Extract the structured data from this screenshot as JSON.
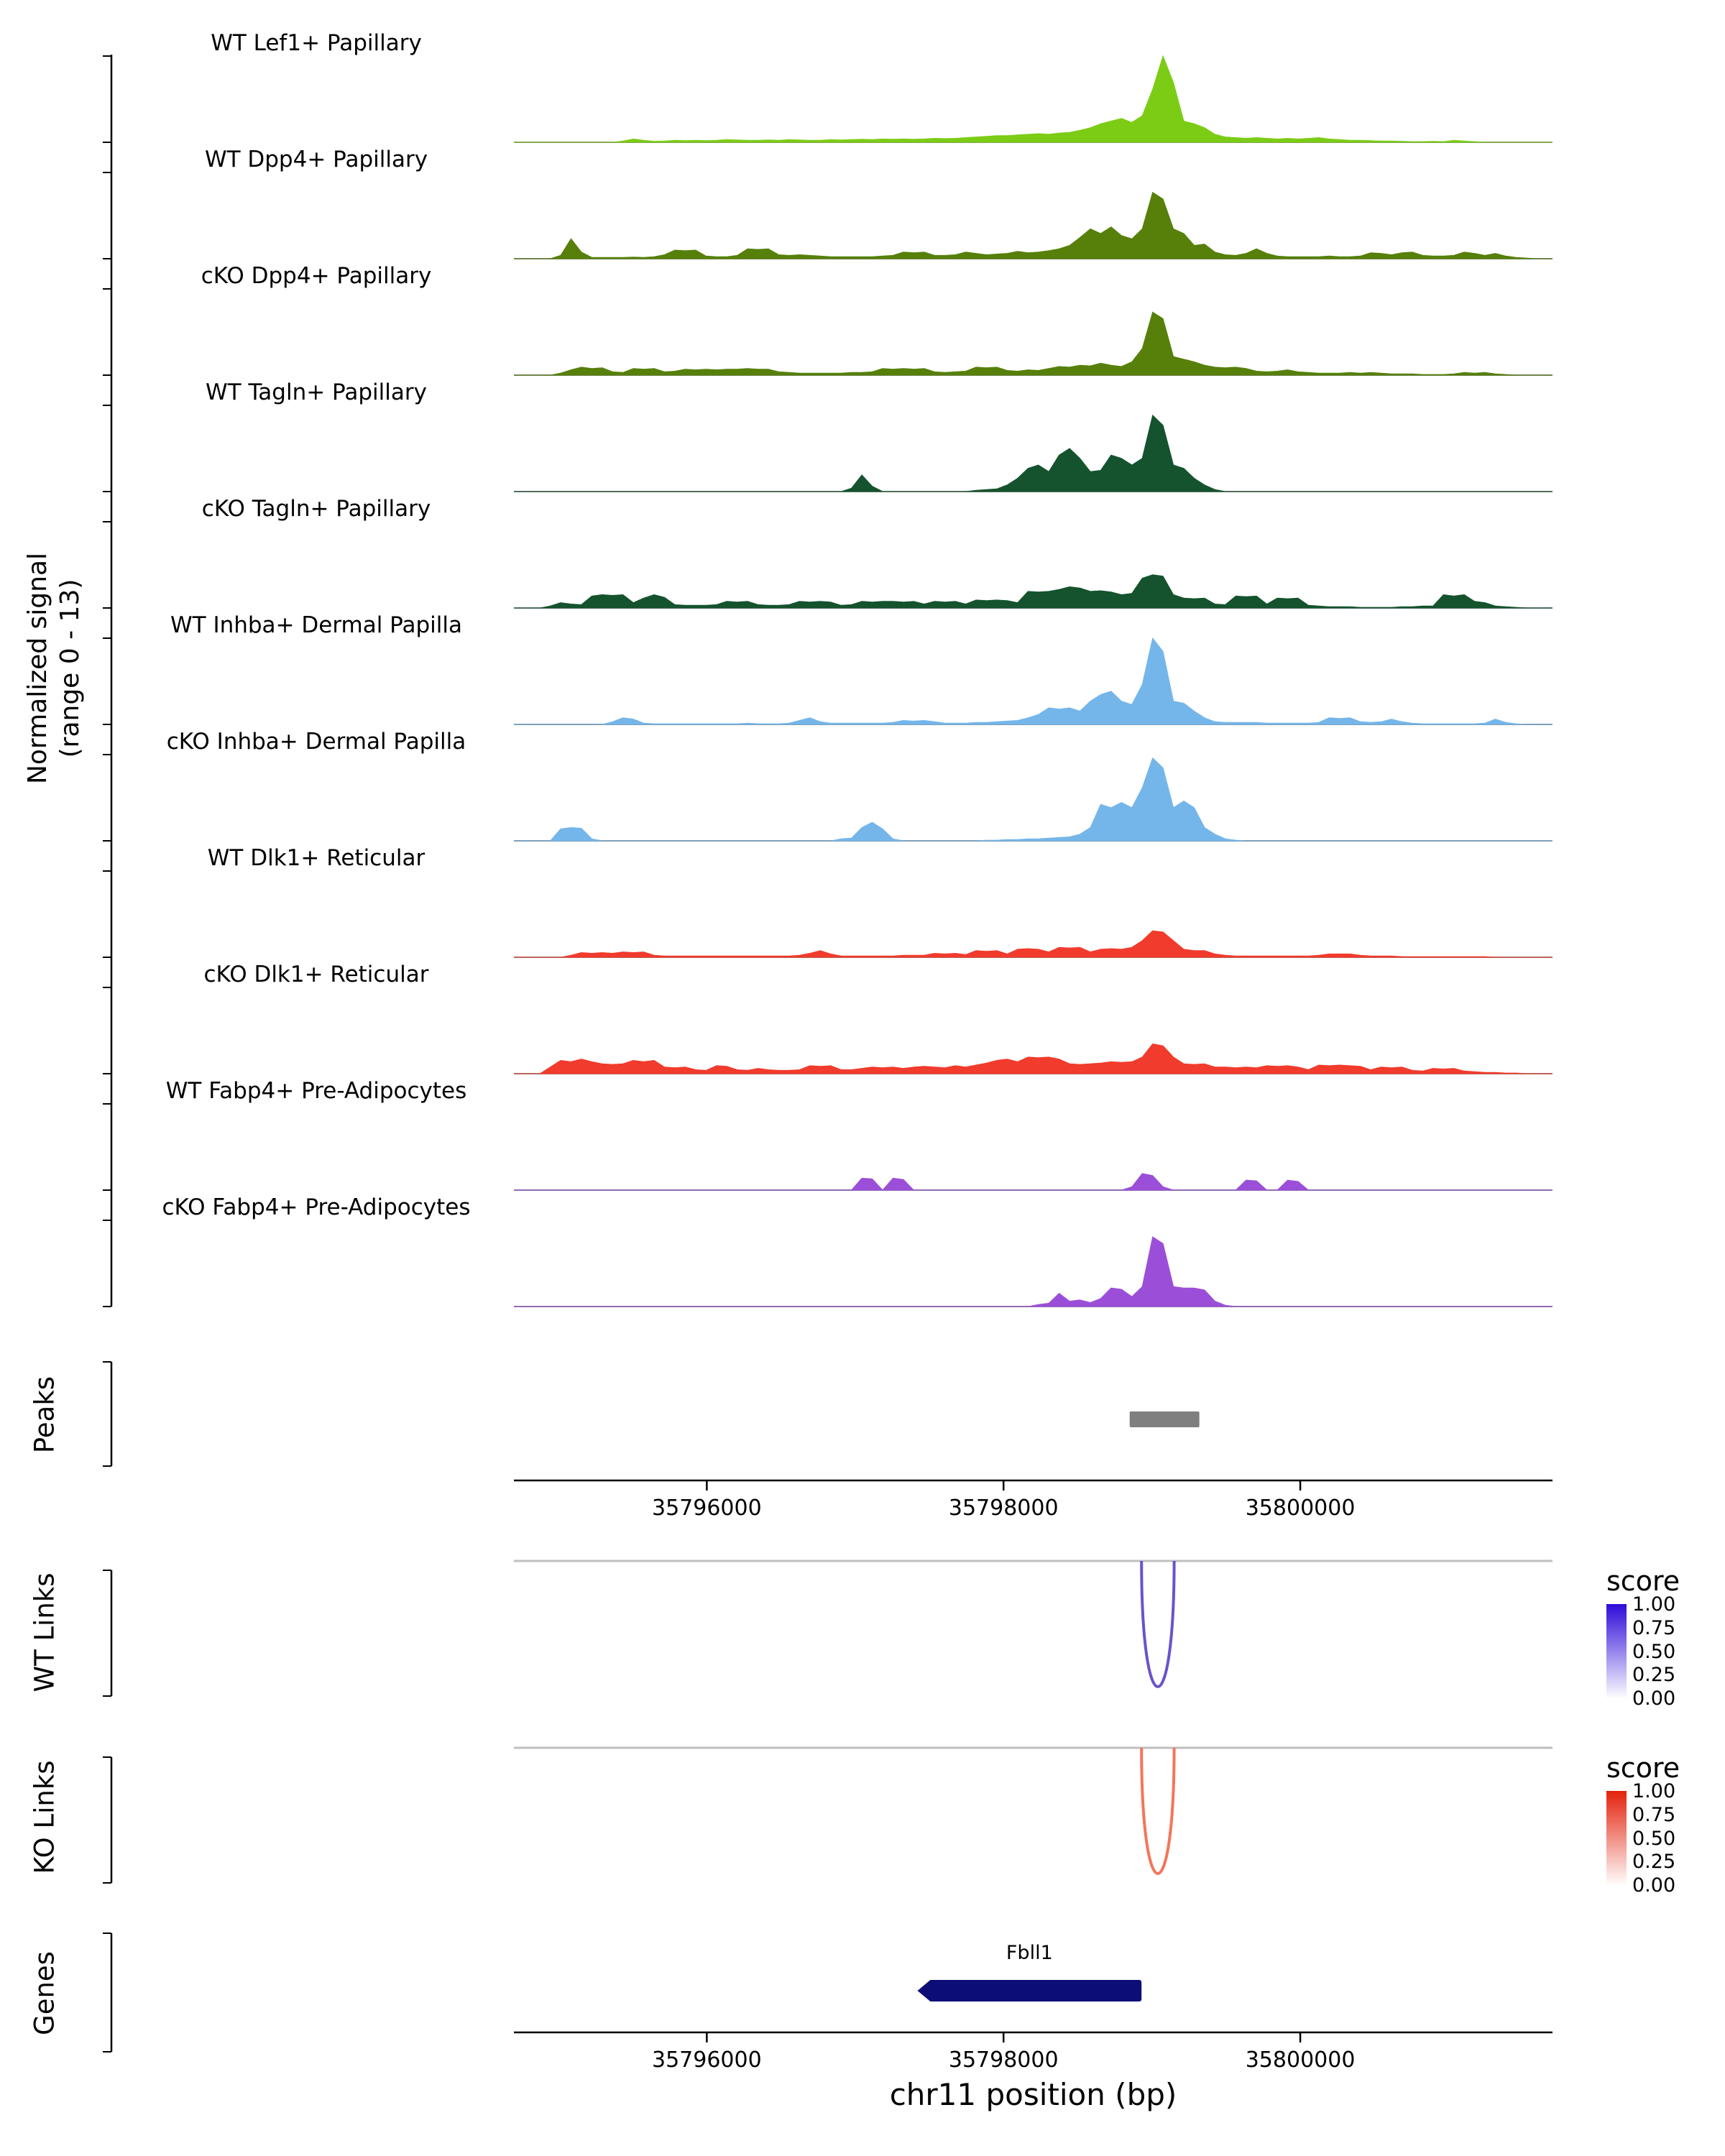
{
  "y_axis": {
    "line1": "Normalized signal",
    "line2": "(range 0 - 13)"
  },
  "sections": {
    "peaks": "Peaks",
    "wt_links": "WT Links",
    "ko_links": "KO Links",
    "genes": "Genes"
  },
  "chart_data": {
    "type": "area",
    "title": "",
    "xlabel": "chr11 position (bp)",
    "region": {
      "chrom": "chr11",
      "start": 35794700,
      "end": 35801700
    },
    "x_ticks": [
      35796000,
      35798000,
      35800000
    ],
    "signal_range": [
      0,
      13
    ],
    "bin_size_bp": 70,
    "tracks": [
      {
        "label": "WT Lef1+ Papillary",
        "color": "#7CCC16",
        "values": [
          0,
          0,
          0,
          0,
          0,
          0,
          0,
          0,
          0,
          0,
          0.2,
          0.5,
          0.3,
          0.15,
          0.2,
          0.3,
          0.25,
          0.3,
          0.25,
          0.3,
          0.4,
          0.35,
          0.3,
          0.3,
          0.35,
          0.3,
          0.4,
          0.35,
          0.3,
          0.3,
          0.4,
          0.35,
          0.4,
          0.45,
          0.4,
          0.5,
          0.45,
          0.5,
          0.45,
          0.5,
          0.6,
          0.55,
          0.6,
          0.7,
          0.8,
          0.9,
          1,
          1,
          1.1,
          1.2,
          1.3,
          1.2,
          1.4,
          1.5,
          1.8,
          2.2,
          2.8,
          3.2,
          3.6,
          3,
          4,
          8,
          13,
          9,
          3.2,
          2.8,
          2.2,
          1.2,
          0.8,
          0.7,
          0.6,
          0.7,
          0.6,
          0.5,
          0.6,
          0.5,
          0.6,
          0.7,
          0.5,
          0.4,
          0.3,
          0.3,
          0.25,
          0.2,
          0.2,
          0.15,
          0.1,
          0.1,
          0.15,
          0.1,
          0.3,
          0.2,
          0.1,
          0,
          0,
          0,
          0,
          0,
          0,
          0
        ]
      },
      {
        "label": "WT Dpp4+ Papillary",
        "color": "#56800A",
        "values": [
          0,
          0,
          0,
          0,
          0.5,
          3,
          1,
          0.2,
          0.2,
          0.2,
          0.2,
          0.25,
          0.2,
          0.3,
          0.6,
          1.3,
          1.2,
          1.3,
          0.4,
          0.3,
          0.3,
          0.5,
          1.5,
          1.4,
          1.5,
          0.6,
          0.5,
          0.6,
          0.5,
          0.4,
          0.3,
          0.3,
          0.3,
          0.3,
          0.3,
          0.4,
          0.5,
          1,
          0.9,
          1,
          0.5,
          0.5,
          0.6,
          1,
          0.8,
          0.6,
          0.7,
          0.8,
          1.1,
          0.9,
          1,
          1.2,
          1.5,
          2,
          3.2,
          4.5,
          3.8,
          4.8,
          3.5,
          3,
          4.5,
          10,
          9,
          4.5,
          3.8,
          2,
          2.2,
          1,
          0.6,
          0.5,
          0.8,
          1.5,
          0.8,
          0.4,
          0.3,
          0.3,
          0.3,
          0.3,
          0.4,
          0.3,
          0.3,
          0.4,
          0.9,
          0.8,
          0.6,
          0.9,
          1,
          0.5,
          0.4,
          0.4,
          0.5,
          1,
          0.8,
          0.5,
          0.8,
          0.4,
          0.2,
          0.1,
          0,
          0
        ]
      },
      {
        "label": "cKO Dpp4+ Papillary",
        "color": "#56800A",
        "values": [
          0,
          0,
          0,
          0,
          0.3,
          0.8,
          1.2,
          1,
          1.1,
          0.5,
          0.4,
          1,
          0.9,
          1,
          0.5,
          0.6,
          0.9,
          0.8,
          0.9,
          0.8,
          0.9,
          0.9,
          1,
          0.9,
          0.9,
          0.5,
          0.4,
          0.3,
          0.3,
          0.3,
          0.3,
          0.3,
          0.4,
          0.4,
          0.5,
          1,
          0.9,
          1,
          0.9,
          1,
          0.5,
          0.4,
          0.5,
          0.6,
          1.2,
          1.1,
          1.2,
          0.7,
          0.6,
          0.8,
          0.7,
          1,
          1.3,
          1.2,
          1.5,
          1.4,
          1.8,
          1.5,
          1.3,
          2,
          4,
          9.5,
          8.5,
          2.8,
          2.4,
          2,
          1.5,
          1.2,
          1.1,
          1.2,
          1,
          0.6,
          0.5,
          0.6,
          0.8,
          0.5,
          0.4,
          0.3,
          0.3,
          0.3,
          0.4,
          0.3,
          0.4,
          0.3,
          0.2,
          0.2,
          0.2,
          0.1,
          0.1,
          0.1,
          0.2,
          0.4,
          0.3,
          0.4,
          0.2,
          0.1,
          0,
          0,
          0,
          0
        ]
      },
      {
        "label": "WT Tagln+ Papillary",
        "color": "#14532D",
        "values": [
          0,
          0,
          0,
          0,
          0,
          0,
          0,
          0,
          0,
          0,
          0,
          0,
          0,
          0,
          0,
          0,
          0,
          0,
          0,
          0,
          0,
          0,
          0,
          0,
          0,
          0,
          0,
          0,
          0,
          0,
          0,
          0,
          0.5,
          2.5,
          0.8,
          0,
          0,
          0,
          0,
          0,
          0,
          0,
          0,
          0,
          0.2,
          0.3,
          0.4,
          1,
          2,
          3.5,
          4,
          3,
          5.5,
          6.5,
          5,
          3,
          3.2,
          5.5,
          5,
          4,
          5,
          11.5,
          10,
          4,
          3.5,
          2,
          1,
          0.3,
          0,
          0,
          0,
          0,
          0,
          0,
          0,
          0,
          0,
          0,
          0,
          0,
          0,
          0,
          0,
          0,
          0,
          0,
          0,
          0,
          0,
          0,
          0,
          0,
          0,
          0,
          0,
          0,
          0,
          0,
          0,
          0
        ]
      },
      {
        "label": "cKO Tagln+ Papillary",
        "color": "#14532D",
        "values": [
          0,
          0,
          0,
          0.3,
          0.8,
          0.6,
          0.5,
          1.8,
          2,
          1.9,
          2,
          0.8,
          1.5,
          2,
          1.6,
          0.5,
          0.4,
          0.4,
          0.4,
          0.5,
          1,
          0.9,
          1,
          0.5,
          0.4,
          0.4,
          0.5,
          1,
          0.9,
          1,
          0.9,
          0.4,
          0.5,
          1,
          0.9,
          1,
          1,
          0.9,
          1,
          0.6,
          1,
          0.9,
          1,
          0.6,
          1.2,
          1.1,
          1.2,
          1.1,
          0.8,
          2.5,
          2.4,
          2.5,
          2.8,
          3.2,
          3,
          2.5,
          2.6,
          2.4,
          2,
          2.2,
          4.5,
          5,
          4.8,
          2,
          1.5,
          1.4,
          1.5,
          0.6,
          0.5,
          1.8,
          1.7,
          1.8,
          0.6,
          1.5,
          1.4,
          1.5,
          0.4,
          0.3,
          0.2,
          0.2,
          0.2,
          0.1,
          0.1,
          0.1,
          0.1,
          0.2,
          0.2,
          0.3,
          0.3,
          2,
          1.8,
          2,
          1,
          0.8,
          0.3,
          0.2,
          0.1,
          0,
          0,
          0
        ]
      },
      {
        "label": "WT Inhba+ Dermal Papilla",
        "color": "#74B6EA",
        "values": [
          0,
          0,
          0,
          0,
          0,
          0,
          0,
          0,
          0,
          0.4,
          1,
          0.8,
          0.2,
          0.1,
          0.1,
          0.1,
          0.1,
          0.1,
          0.1,
          0.1,
          0.1,
          0.1,
          0.2,
          0.1,
          0.1,
          0.1,
          0.2,
          0.6,
          1,
          0.4,
          0.2,
          0.2,
          0.2,
          0.2,
          0.2,
          0.2,
          0.3,
          0.6,
          0.5,
          0.6,
          0.4,
          0.2,
          0.2,
          0.2,
          0.3,
          0.3,
          0.4,
          0.5,
          0.6,
          1,
          1.5,
          2.5,
          2.3,
          2.5,
          2,
          3.5,
          4.5,
          5,
          3.5,
          3,
          6,
          13,
          11,
          3.5,
          3.2,
          2,
          1,
          0.4,
          0.3,
          0.3,
          0.3,
          0.3,
          0.2,
          0.2,
          0.2,
          0.2,
          0.2,
          0.3,
          1,
          0.9,
          1,
          0.4,
          0.3,
          0.4,
          0.8,
          0.4,
          0.2,
          0.1,
          0.1,
          0.1,
          0.1,
          0.1,
          0.1,
          0.2,
          0.8,
          0.3,
          0.1,
          0,
          0,
          0
        ]
      },
      {
        "label": "cKO Inhba+ Dermal Papilla",
        "color": "#74B6EA",
        "values": [
          0,
          0,
          0,
          0,
          1.8,
          2,
          1.9,
          0.3,
          0,
          0,
          0,
          0,
          0,
          0,
          0,
          0,
          0,
          0,
          0,
          0,
          0,
          0,
          0,
          0,
          0,
          0,
          0,
          0,
          0,
          0,
          0,
          0.3,
          0.4,
          2,
          2.8,
          1.8,
          0.3,
          0,
          0,
          0,
          0,
          0,
          0,
          0,
          0,
          0.1,
          0.1,
          0.2,
          0.2,
          0.3,
          0.3,
          0.4,
          0.5,
          0.6,
          1,
          2,
          5.5,
          5,
          5.8,
          5,
          8,
          12.5,
          11,
          5,
          6,
          5,
          2,
          1,
          0.3,
          0.1,
          0,
          0,
          0,
          0,
          0,
          0,
          0,
          0,
          0,
          0,
          0,
          0,
          0,
          0,
          0,
          0,
          0,
          0,
          0,
          0,
          0,
          0,
          0,
          0,
          0,
          0,
          0,
          0,
          0,
          0
        ]
      },
      {
        "label": "WT Dlk1+ Reticular",
        "color": "#F13B2C",
        "values": [
          0,
          0,
          0,
          0,
          0,
          0.3,
          0.7,
          0.6,
          0.7,
          0.6,
          0.8,
          0.7,
          0.8,
          0.3,
          0.2,
          0.2,
          0.2,
          0.2,
          0.2,
          0.2,
          0.2,
          0.2,
          0.2,
          0.2,
          0.2,
          0.2,
          0.2,
          0.3,
          0.6,
          1,
          0.5,
          0.2,
          0.2,
          0.2,
          0.2,
          0.2,
          0.2,
          0.3,
          0.3,
          0.3,
          0.6,
          0.5,
          0.6,
          0.4,
          1,
          0.9,
          1,
          0.5,
          1.2,
          1.3,
          1.2,
          0.8,
          1.5,
          1.4,
          1.5,
          0.8,
          1.2,
          1.3,
          1.2,
          1.5,
          2.5,
          4,
          3.8,
          2.5,
          1.2,
          1,
          1,
          0.5,
          0.3,
          0.2,
          0.2,
          0.2,
          0.2,
          0.2,
          0.2,
          0.2,
          0.2,
          0.3,
          0.5,
          0.5,
          0.5,
          0.3,
          0.2,
          0.2,
          0.2,
          0.1,
          0.1,
          0.1,
          0.1,
          0.1,
          0.1,
          0.1,
          0.1,
          0.1,
          0,
          0,
          0,
          0,
          0,
          0
        ]
      },
      {
        "label": "cKO Dlk1+ Reticular",
        "color": "#F13B2C",
        "values": [
          0,
          0,
          0,
          1,
          2,
          1.8,
          2.2,
          1.8,
          1.5,
          1.4,
          1.5,
          2,
          1.8,
          2,
          1,
          0.9,
          1,
          0.6,
          0.5,
          1.2,
          1.1,
          0.6,
          0.5,
          0.8,
          0.6,
          0.5,
          0.5,
          0.6,
          1.2,
          1.1,
          1.2,
          0.6,
          0.6,
          0.8,
          1,
          0.9,
          1,
          0.8,
          1,
          1.1,
          1,
          0.9,
          1.2,
          1,
          1.3,
          1.6,
          2,
          2.2,
          1.8,
          2.5,
          2.4,
          2.5,
          2.2,
          1.5,
          1.4,
          1.5,
          1.6,
          1.8,
          1.7,
          1.8,
          2.5,
          4.5,
          4.2,
          2.5,
          1.5,
          1.4,
          1.5,
          1,
          1,
          0.9,
          1,
          0.9,
          1.2,
          1.1,
          1.2,
          1,
          0.6,
          1.3,
          1.2,
          1.3,
          1.2,
          1.1,
          0.6,
          1,
          0.9,
          1,
          0.5,
          0.4,
          0.8,
          0.7,
          0.8,
          0.4,
          0.3,
          0.2,
          0.2,
          0.1,
          0.1,
          0,
          0,
          0
        ]
      },
      {
        "label": "WT Fabp4+ Pre-Adipocytes",
        "color": "#9B4FD8",
        "values": [
          0,
          0,
          0,
          0,
          0,
          0,
          0,
          0,
          0,
          0,
          0,
          0,
          0,
          0,
          0,
          0,
          0,
          0,
          0,
          0,
          0,
          0,
          0,
          0,
          0,
          0,
          0,
          0,
          0,
          0,
          0,
          0,
          0,
          1.8,
          1.7,
          0,
          1.8,
          1.6,
          0,
          0,
          0,
          0,
          0,
          0,
          0,
          0,
          0,
          0,
          0,
          0,
          0,
          0,
          0,
          0,
          0,
          0,
          0,
          0,
          0,
          0.5,
          2.5,
          2.2,
          0.5,
          0,
          0,
          0,
          0,
          0,
          0,
          0,
          1.5,
          1.4,
          0,
          0,
          1.5,
          1.3,
          0,
          0,
          0,
          0,
          0,
          0,
          0,
          0,
          0,
          0,
          0,
          0,
          0,
          0,
          0,
          0,
          0,
          0,
          0,
          0,
          0,
          0,
          0,
          0
        ]
      },
      {
        "label": "cKO Fabp4+ Pre-Adipocytes",
        "color": "#9B4FD8",
        "values": [
          0,
          0,
          0,
          0,
          0,
          0,
          0,
          0,
          0,
          0,
          0,
          0,
          0,
          0,
          0,
          0,
          0,
          0,
          0,
          0,
          0,
          0,
          0,
          0,
          0,
          0,
          0,
          0,
          0,
          0,
          0,
          0,
          0,
          0,
          0,
          0,
          0,
          0,
          0,
          0,
          0,
          0,
          0,
          0,
          0,
          0,
          0,
          0,
          0,
          0,
          0.3,
          0.5,
          2,
          0.8,
          1,
          0.6,
          1.2,
          2.8,
          2.6,
          1.5,
          3,
          10.5,
          9.5,
          3,
          2.8,
          2.8,
          2.5,
          0.8,
          0.2,
          0,
          0,
          0,
          0,
          0,
          0,
          0,
          0,
          0,
          0,
          0,
          0,
          0,
          0,
          0,
          0,
          0,
          0,
          0,
          0,
          0,
          0,
          0,
          0,
          0,
          0,
          0,
          0,
          0,
          0,
          0
        ]
      }
    ],
    "peaks": {
      "color": "#7F7F7F",
      "intervals": [
        {
          "start": 35798850,
          "end": 35799320
        }
      ]
    },
    "links": {
      "wt": {
        "label": "WT Links",
        "arcs": [
          {
            "start": 35798930,
            "end": 35799150,
            "score": 0.8,
            "color": "#6C52CC"
          }
        ],
        "legend": {
          "title": "score",
          "ticks": [
            "1.00",
            "0.75",
            "0.50",
            "0.25",
            "0.00"
          ],
          "color_high": "#2F0BD9",
          "color_low": "#FFFFFF"
        }
      },
      "ko": {
        "label": "KO Links",
        "arcs": [
          {
            "start": 35798930,
            "end": 35799150,
            "score": 0.8,
            "color": "#F4755B"
          }
        ],
        "legend": {
          "title": "score",
          "ticks": [
            "1.00",
            "0.75",
            "0.50",
            "0.25",
            "0.00"
          ],
          "color_high": "#E3220B",
          "color_low": "#FFFFFF"
        }
      }
    },
    "genes": {
      "color": "#0D0D78",
      "items": [
        {
          "name": "Fbll1",
          "start": 35797420,
          "end": 35798930,
          "strand": "-"
        }
      ]
    }
  }
}
